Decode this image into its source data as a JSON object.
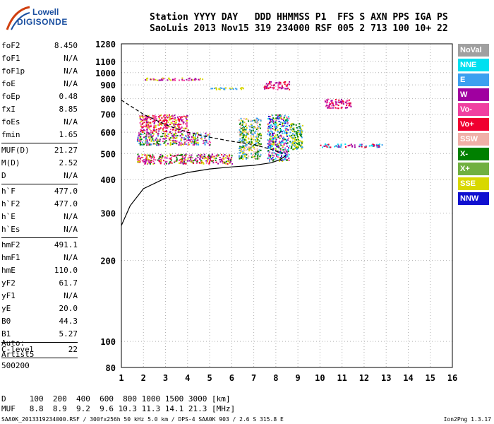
{
  "logo": {
    "line1": "Lowell",
    "line2": "DIGISONDE"
  },
  "header": {
    "line1": "Station YYYY DAY   DDD HHMMSS P1  FFS S AXN PPS IGA PS",
    "line2": "SaoLuis 2013 Nov15 319 234000 RSF 005 2 713 100 10+ 22"
  },
  "params": [
    {
      "name": "foF2",
      "value": "8.450"
    },
    {
      "name": "foF1",
      "value": "N/A"
    },
    {
      "name": "foF1p",
      "value": "N/A"
    },
    {
      "name": "foE",
      "value": "N/A"
    },
    {
      "name": "foEp",
      "value": "0.48"
    },
    {
      "name": "fxI",
      "value": "8.85"
    },
    {
      "name": "foEs",
      "value": "N/A"
    },
    {
      "name": "fmin",
      "value": "1.65"
    },
    {
      "sep": true
    },
    {
      "name": "MUF(D)",
      "value": "21.27"
    },
    {
      "name": "M(D)",
      "value": "2.52"
    },
    {
      "name": "D",
      "value": "N/A"
    },
    {
      "sep": true
    },
    {
      "name": "h`F",
      "value": "477.0"
    },
    {
      "name": "h`F2",
      "value": "477.0"
    },
    {
      "name": "h`E",
      "value": "N/A"
    },
    {
      "name": "h`Es",
      "value": "N/A"
    },
    {
      "sep": true
    },
    {
      "name": "hmF2",
      "value": "491.1"
    },
    {
      "name": "hmF1",
      "value": "N/A"
    },
    {
      "name": "hmE",
      "value": "110.0"
    },
    {
      "name": "yF2",
      "value": "61.7"
    },
    {
      "name": "yF1",
      "value": "N/A"
    },
    {
      "name": "yE",
      "value": "20.0"
    },
    {
      "name": "B0",
      "value": "44.3"
    },
    {
      "name": "B1",
      "value": "5.27"
    },
    {
      "sep": true
    },
    {
      "name": "C-level",
      "value": "22"
    },
    {
      "sep": true
    }
  ],
  "auto": {
    "line1": "Auto:",
    "line2": "Artist5",
    "line3": "500200"
  },
  "table": {
    "d_row": "D     100  200  400  600  800 1000 1500 3000 [km]",
    "muf_row": "MUF   8.8  8.9  9.2  9.6 10.3 11.3 14.1 21.3 [MHz]"
  },
  "footer": {
    "text": "SAA0K_2013319234000.RSF / 300fx256h 50 kHz 5.0 km / DPS-4 SAA0K 903 / 2.6 S 315.8 E",
    "version": "Ion2Png 1.3.17"
  },
  "legend": [
    {
      "label": "NoVal",
      "color": "#a0a0a0"
    },
    {
      "label": "NNE",
      "color": "#00e0f0"
    },
    {
      "label": "E",
      "color": "#3ca0f0"
    },
    {
      "label": "W",
      "color": "#a000a0"
    },
    {
      "label": "Vo-",
      "color": "#f040a0"
    },
    {
      "label": "Vo+",
      "color": "#f00030"
    },
    {
      "label": "SSW",
      "color": "#f0b0a8"
    },
    {
      "label": "X-",
      "color": "#008000"
    },
    {
      "label": "X+",
      "color": "#70b040"
    },
    {
      "label": "SSE",
      "color": "#d8d800"
    },
    {
      "label": "NNW",
      "color": "#1010d0"
    }
  ],
  "chart_data": {
    "type": "scatter",
    "xlabel": "",
    "ylabel": "",
    "xlim": [
      1,
      16
    ],
    "ylim": [
      80,
      1280
    ],
    "y_scale": "log",
    "grid": true,
    "x_ticks": [
      1,
      2,
      3,
      4,
      5,
      6,
      7,
      8,
      9,
      10,
      11,
      12,
      13,
      14,
      15,
      16
    ],
    "y_ticks": [
      80,
      100,
      200,
      300,
      400,
      500,
      600,
      700,
      800,
      900,
      1000,
      1100,
      1280
    ],
    "traces": [
      {
        "name": "echo-cluster",
        "fmin": 1.7,
        "fmax": 6.0,
        "hmin": 460,
        "hmax": 500,
        "colors": [
          "#a000a0",
          "#f00030",
          "#f040a0",
          "#008000",
          "#d8d800"
        ]
      },
      {
        "name": "echo-cluster",
        "fmin": 1.7,
        "fmax": 5.0,
        "hmin": 540,
        "hmax": 600,
        "colors": [
          "#d8d800",
          "#a000a0",
          "#f040a0",
          "#3ca0f0",
          "#008000"
        ]
      },
      {
        "name": "echo-cluster",
        "fmin": 1.8,
        "fmax": 4.0,
        "hmin": 600,
        "hmax": 700,
        "colors": [
          "#a000a0",
          "#f040a0",
          "#f00030",
          "#d8d800"
        ]
      },
      {
        "name": "echo-cluster",
        "fmin": 6.3,
        "fmax": 7.3,
        "hmin": 480,
        "hmax": 680,
        "colors": [
          "#d8d800",
          "#f0b0a8",
          "#3ca0f0",
          "#008000"
        ]
      },
      {
        "name": "echo-cluster",
        "fmin": 7.6,
        "fmax": 8.6,
        "hmin": 470,
        "hmax": 700,
        "colors": [
          "#1010d0",
          "#00e0f0",
          "#3ca0f0",
          "#a000a0",
          "#d8d800",
          "#008000",
          "#f040a0"
        ]
      },
      {
        "name": "echo-cluster",
        "fmin": 8.6,
        "fmax": 9.2,
        "hmin": 520,
        "hmax": 650,
        "colors": [
          "#d8d800",
          "#008000",
          "#3ca0f0"
        ]
      },
      {
        "name": "echo-cluster",
        "fmin": 7.4,
        "fmax": 8.6,
        "hmin": 870,
        "hmax": 930,
        "colors": [
          "#f040a0",
          "#a000a0",
          "#f00030"
        ]
      },
      {
        "name": "echo-cluster",
        "fmin": 2.0,
        "fmax": 4.8,
        "hmin": 940,
        "hmax": 960,
        "colors": [
          "#f040a0",
          "#a000a0",
          "#d8d800"
        ]
      },
      {
        "name": "echo-cluster",
        "fmin": 5.0,
        "fmax": 6.6,
        "hmin": 870,
        "hmax": 885,
        "colors": [
          "#3ca0f0",
          "#d8d800"
        ]
      },
      {
        "name": "echo-cluster",
        "fmin": 10.0,
        "fmax": 12.8,
        "hmin": 530,
        "hmax": 545,
        "colors": [
          "#a000a0",
          "#f00030",
          "#00e0f0",
          "#3ca0f0"
        ]
      },
      {
        "name": "echo-cluster",
        "fmin": 10.2,
        "fmax": 11.4,
        "hmin": 740,
        "hmax": 800,
        "colors": [
          "#a000a0",
          "#f040a0",
          "#f00030"
        ]
      }
    ],
    "profile_solid": [
      [
        1.0,
        270
      ],
      [
        1.4,
        320
      ],
      [
        2.0,
        370
      ],
      [
        3.0,
        405
      ],
      [
        4.0,
        425
      ],
      [
        5.0,
        438
      ],
      [
        6.0,
        446
      ],
      [
        7.0,
        452
      ],
      [
        7.8,
        462
      ],
      [
        8.2,
        475
      ],
      [
        8.45,
        491
      ]
    ],
    "profile_dashed": [
      [
        1.0,
        790
      ],
      [
        2.0,
        700
      ],
      [
        3.0,
        640
      ],
      [
        4.0,
        600
      ],
      [
        5.0,
        575
      ],
      [
        6.0,
        555
      ],
      [
        7.0,
        540
      ],
      [
        7.8,
        518
      ],
      [
        8.3,
        500
      ]
    ]
  }
}
